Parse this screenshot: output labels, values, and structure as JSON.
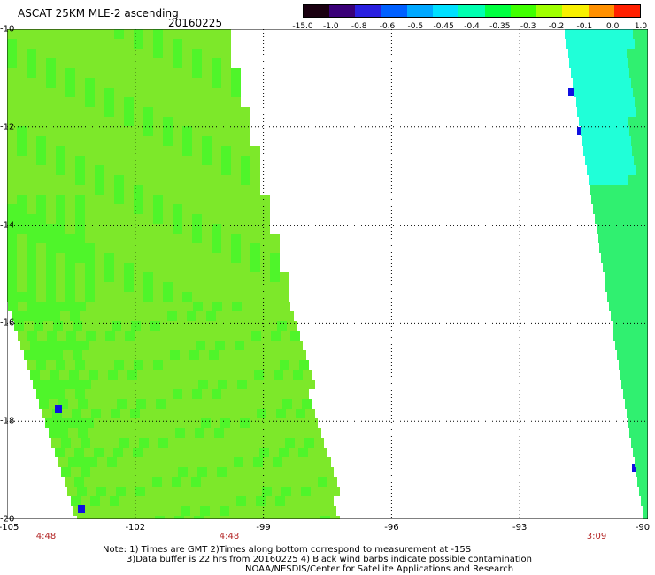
{
  "title": "ASCAT 25KM MLE-2 ascending",
  "date": "20160225",
  "colorbar": {
    "labels": [
      "-15.0",
      "-1.0",
      "-0.8",
      "-0.6",
      "-0.5",
      "-0.45",
      "-0.4",
      "-0.35",
      "-0.3",
      "-0.2",
      "-0.1",
      "0.0",
      "1.0"
    ],
    "colors": [
      "#1a0010",
      "#3a0078",
      "#2a20e0",
      "#0060ff",
      "#00a8ff",
      "#00e0ff",
      "#00ffb0",
      "#00ff40",
      "#40ff00",
      "#a0ff00",
      "#f8f000",
      "#ff9000",
      "#ff2000"
    ]
  },
  "axes": {
    "lon_labels": [
      "-105",
      "-102",
      "-99",
      "-96",
      "-93",
      "-90"
    ],
    "lon_values": [
      -105,
      -102,
      -99,
      -96,
      -93,
      -90
    ],
    "lat_labels": [
      "-10",
      "-12",
      "-14",
      "-16",
      "-18",
      "-20"
    ],
    "lat_values": [
      -10,
      -12,
      -14,
      -16,
      -18,
      -20
    ]
  },
  "times": [
    "4:48",
    "4:48",
    "3:09"
  ],
  "notes": {
    "line1": "Note: 1) Times are GMT 2)Times along bottom correspond to measurement at -15S",
    "line2": "3)Data buffer is 22 hrs from 20160225 4) Black wind barbs indicate possible contamination",
    "line3": "NOAA/NESDIS/Center for Satellite Applications and Research"
  },
  "swaths": {
    "left_main_color": "#7de82a",
    "left_secondary_color": "#4ff52a",
    "right_main_color": "#30f070",
    "right_cyan_color": "#20ffd8",
    "outlier_color": "#1010e0"
  }
}
